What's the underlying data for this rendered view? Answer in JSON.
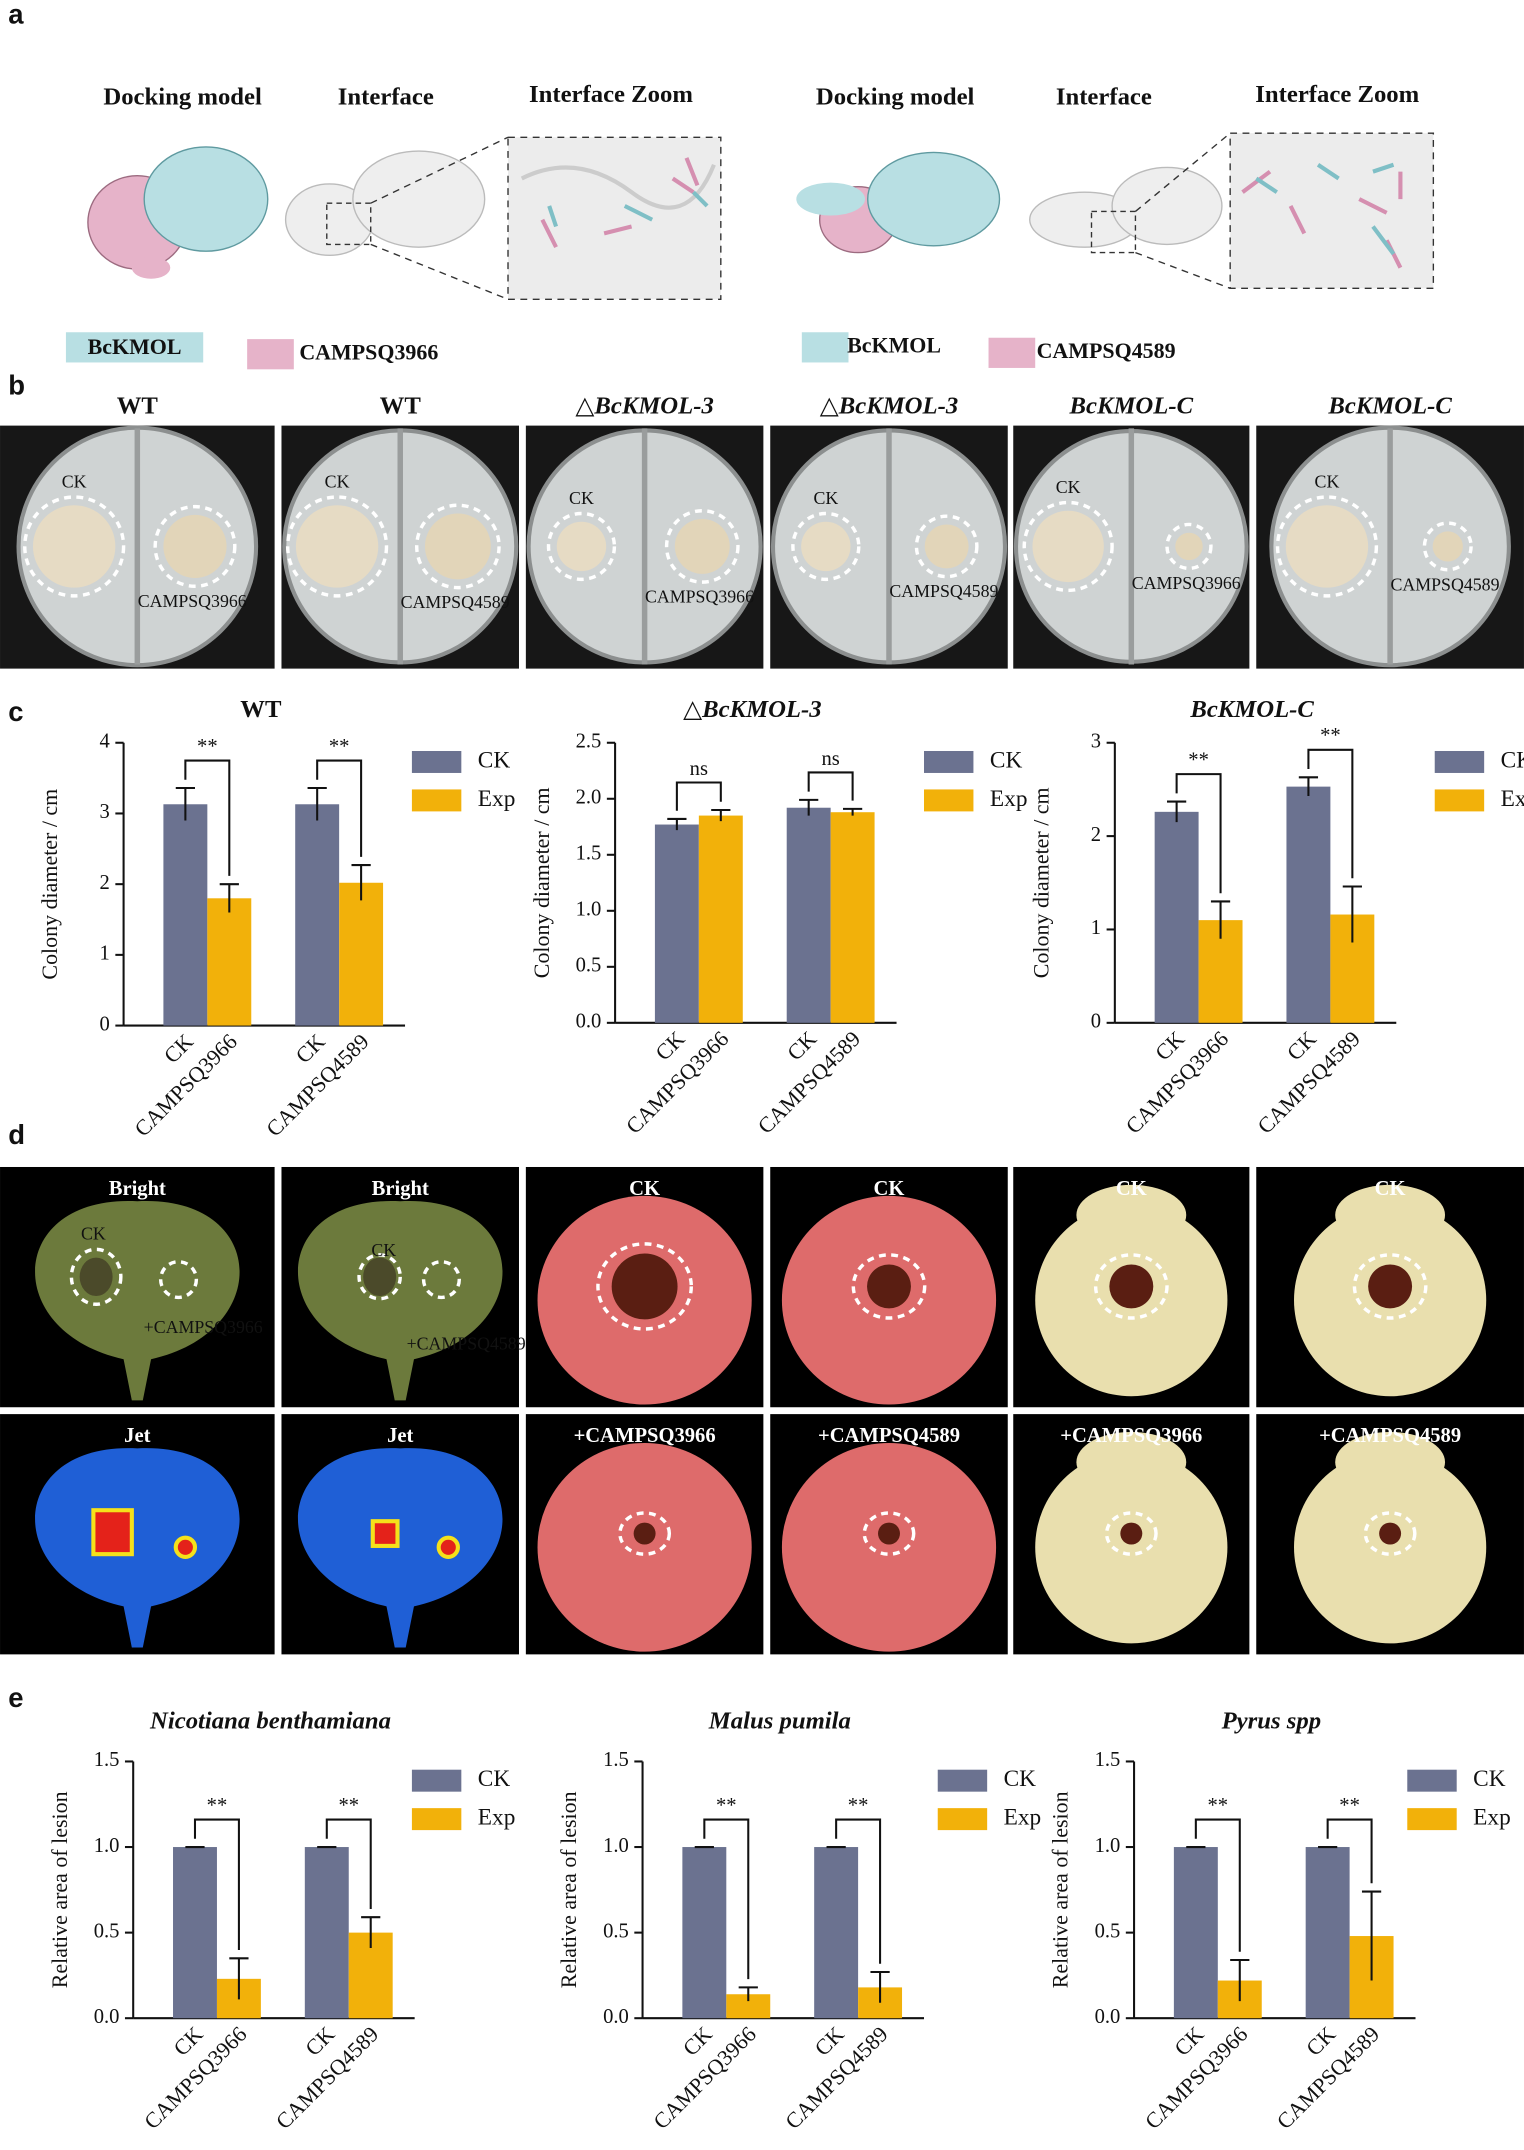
{
  "panel_labels": [
    "a",
    "b",
    "c",
    "d",
    "e"
  ],
  "panel_a": {
    "left": {
      "headers": [
        "Docking model",
        "Interface",
        "Interface Zoom"
      ],
      "legend": [
        "BcKMOL",
        "CAMPSQ3966"
      ]
    },
    "right": {
      "headers": [
        "Docking model",
        "Interface",
        "Interface Zoom"
      ],
      "legend": [
        "BcKMOL",
        "CAMPSQ4589"
      ]
    }
  },
  "panel_b": {
    "titles": [
      "WT",
      "WT",
      "△BcKMOL-3",
      "△BcKMOL-3",
      "BcKMOL-C",
      "BcKMOL-C"
    ],
    "plates": [
      {
        "ck": "CK",
        "treatment": "CAMPSQ3966"
      },
      {
        "ck": "CK",
        "treatment": "CAMPSQ4589"
      },
      {
        "ck": "CK",
        "treatment": "CAMPSQ3966"
      },
      {
        "ck": "CK",
        "treatment": "CAMPSQ4589"
      },
      {
        "ck": "CK",
        "treatment": "CAMPSQ3966"
      },
      {
        "ck": "CK",
        "treatment": "CAMPSQ4589"
      }
    ]
  },
  "panel_d": {
    "row1_titles": [
      "Bright",
      "Bright",
      "CK",
      "CK",
      "CK",
      "CK"
    ],
    "row2_titles": [
      "Jet",
      "Jet",
      "+CAMPSQ3966",
      "+CAMPSQ4589",
      "+CAMPSQ3966",
      "+CAMPSQ4589"
    ],
    "leaf_labels": [
      {
        "ck": "CK",
        "treatment": "+CAMPSQ3966"
      },
      {
        "ck": "CK",
        "treatment": "+CAMPSQ4589"
      }
    ]
  },
  "chart_data": [
    {
      "type": "bar",
      "title": "WT",
      "y_label": "Colony diameter / cm",
      "categories": [
        [
          "CK",
          "CAMPSQ3966"
        ],
        [
          "CK",
          "CAMPSQ4589"
        ]
      ],
      "series": [
        {
          "name": "CK",
          "color": "#6b7290",
          "values": [
            3.13,
            3.13
          ],
          "errors": [
            0.23,
            0.23
          ]
        },
        {
          "name": "Exp",
          "color": "#f2b10a",
          "values": [
            1.8,
            2.02
          ],
          "errors": [
            0.2,
            0.25
          ]
        }
      ],
      "significance": [
        "**",
        "**"
      ],
      "ylim": [
        0,
        4
      ],
      "yticks": [
        0,
        1,
        2,
        3,
        4
      ]
    },
    {
      "type": "bar",
      "title": "△BcKMOL-3",
      "y_label": "Colony diameter / cm",
      "categories": [
        [
          "CK",
          "CAMPSQ3966"
        ],
        [
          "CK",
          "CAMPSQ4589"
        ]
      ],
      "series": [
        {
          "name": "CK",
          "color": "#6b7290",
          "values": [
            1.77,
            1.92
          ],
          "errors": [
            0.05,
            0.07
          ]
        },
        {
          "name": "Exp",
          "color": "#f2b10a",
          "values": [
            1.85,
            1.88
          ],
          "errors": [
            0.05,
            0.03
          ]
        }
      ],
      "significance": [
        "ns",
        "ns"
      ],
      "ylim": [
        0,
        2.5
      ],
      "yticks": [
        {
          "value": 0,
          "label": "0.0"
        },
        0.5,
        {
          "value": 1,
          "label": "1.0"
        },
        1.5,
        {
          "value": 2,
          "label": "2.0"
        },
        2.5
      ]
    },
    {
      "type": "bar",
      "title": "BcKMOL-C",
      "y_label": "Colony diameter / cm",
      "categories": [
        [
          "CK",
          "CAMPSQ3966"
        ],
        [
          "CK",
          "CAMPSQ4589"
        ]
      ],
      "series": [
        {
          "name": "CK",
          "color": "#6b7290",
          "values": [
            2.26,
            2.53
          ],
          "errors": [
            0.11,
            0.1
          ]
        },
        {
          "name": "Exp",
          "color": "#f2b10a",
          "values": [
            1.1,
            1.16
          ],
          "errors": [
            0.2,
            0.3
          ]
        }
      ],
      "significance": [
        "**",
        "**"
      ],
      "ylim": [
        0,
        3
      ],
      "yticks": [
        0,
        1,
        2,
        3
      ]
    },
    {
      "type": "bar",
      "title": "Nicotiana benthamiana",
      "y_label": "Relative area of lesion",
      "categories": [
        [
          "CK",
          "CAMPSQ3966"
        ],
        [
          "CK",
          "CAMPSQ4589"
        ]
      ],
      "series": [
        {
          "name": "CK",
          "color": "#6b7290",
          "values": [
            1,
            1
          ],
          "errors": [
            0,
            0
          ]
        },
        {
          "name": "Exp",
          "color": "#f2b10a",
          "values": [
            0.23,
            0.5
          ],
          "errors": [
            0.12,
            0.09
          ]
        }
      ],
      "significance": [
        "**",
        "**"
      ],
      "ylim": [
        0,
        1.5
      ],
      "yticks": [
        {
          "value": 0,
          "label": "0.0"
        },
        0.5,
        {
          "value": 1,
          "label": "1.0"
        },
        1.5
      ]
    },
    {
      "type": "bar",
      "title": "Malus pumila",
      "y_label": "Relative area of lesion",
      "categories": [
        [
          "CK",
          "CAMPSQ3966"
        ],
        [
          "CK",
          "CAMPSQ4589"
        ]
      ],
      "series": [
        {
          "name": "CK",
          "color": "#6b7290",
          "values": [
            1,
            1
          ],
          "errors": [
            0,
            0
          ]
        },
        {
          "name": "Exp",
          "color": "#f2b10a",
          "values": [
            0.14,
            0.18
          ],
          "errors": [
            0.04,
            0.09
          ]
        }
      ],
      "significance": [
        "**",
        "**"
      ],
      "ylim": [
        0,
        1.5
      ],
      "yticks": [
        {
          "value": 0,
          "label": "0.0"
        },
        0.5,
        {
          "value": 1,
          "label": "1.0"
        },
        1.5
      ]
    },
    {
      "type": "bar",
      "title": "Pyrus spp",
      "y_label": "Relative area of lesion",
      "categories": [
        [
          "CK",
          "CAMPSQ3966"
        ],
        [
          "CK",
          "CAMPSQ4589"
        ]
      ],
      "series": [
        {
          "name": "CK",
          "color": "#6b7290",
          "values": [
            1,
            1
          ],
          "errors": [
            0,
            0
          ]
        },
        {
          "name": "Exp",
          "color": "#f2b10a",
          "values": [
            0.22,
            0.48
          ],
          "errors": [
            0.12,
            0.26
          ]
        }
      ],
      "significance": [
        "**",
        "**"
      ],
      "ylim": [
        0,
        1.5
      ],
      "yticks": [
        {
          "value": 0,
          "label": "0.0"
        },
        0.5,
        {
          "value": 1,
          "label": "1.0"
        },
        1.5
      ]
    }
  ]
}
